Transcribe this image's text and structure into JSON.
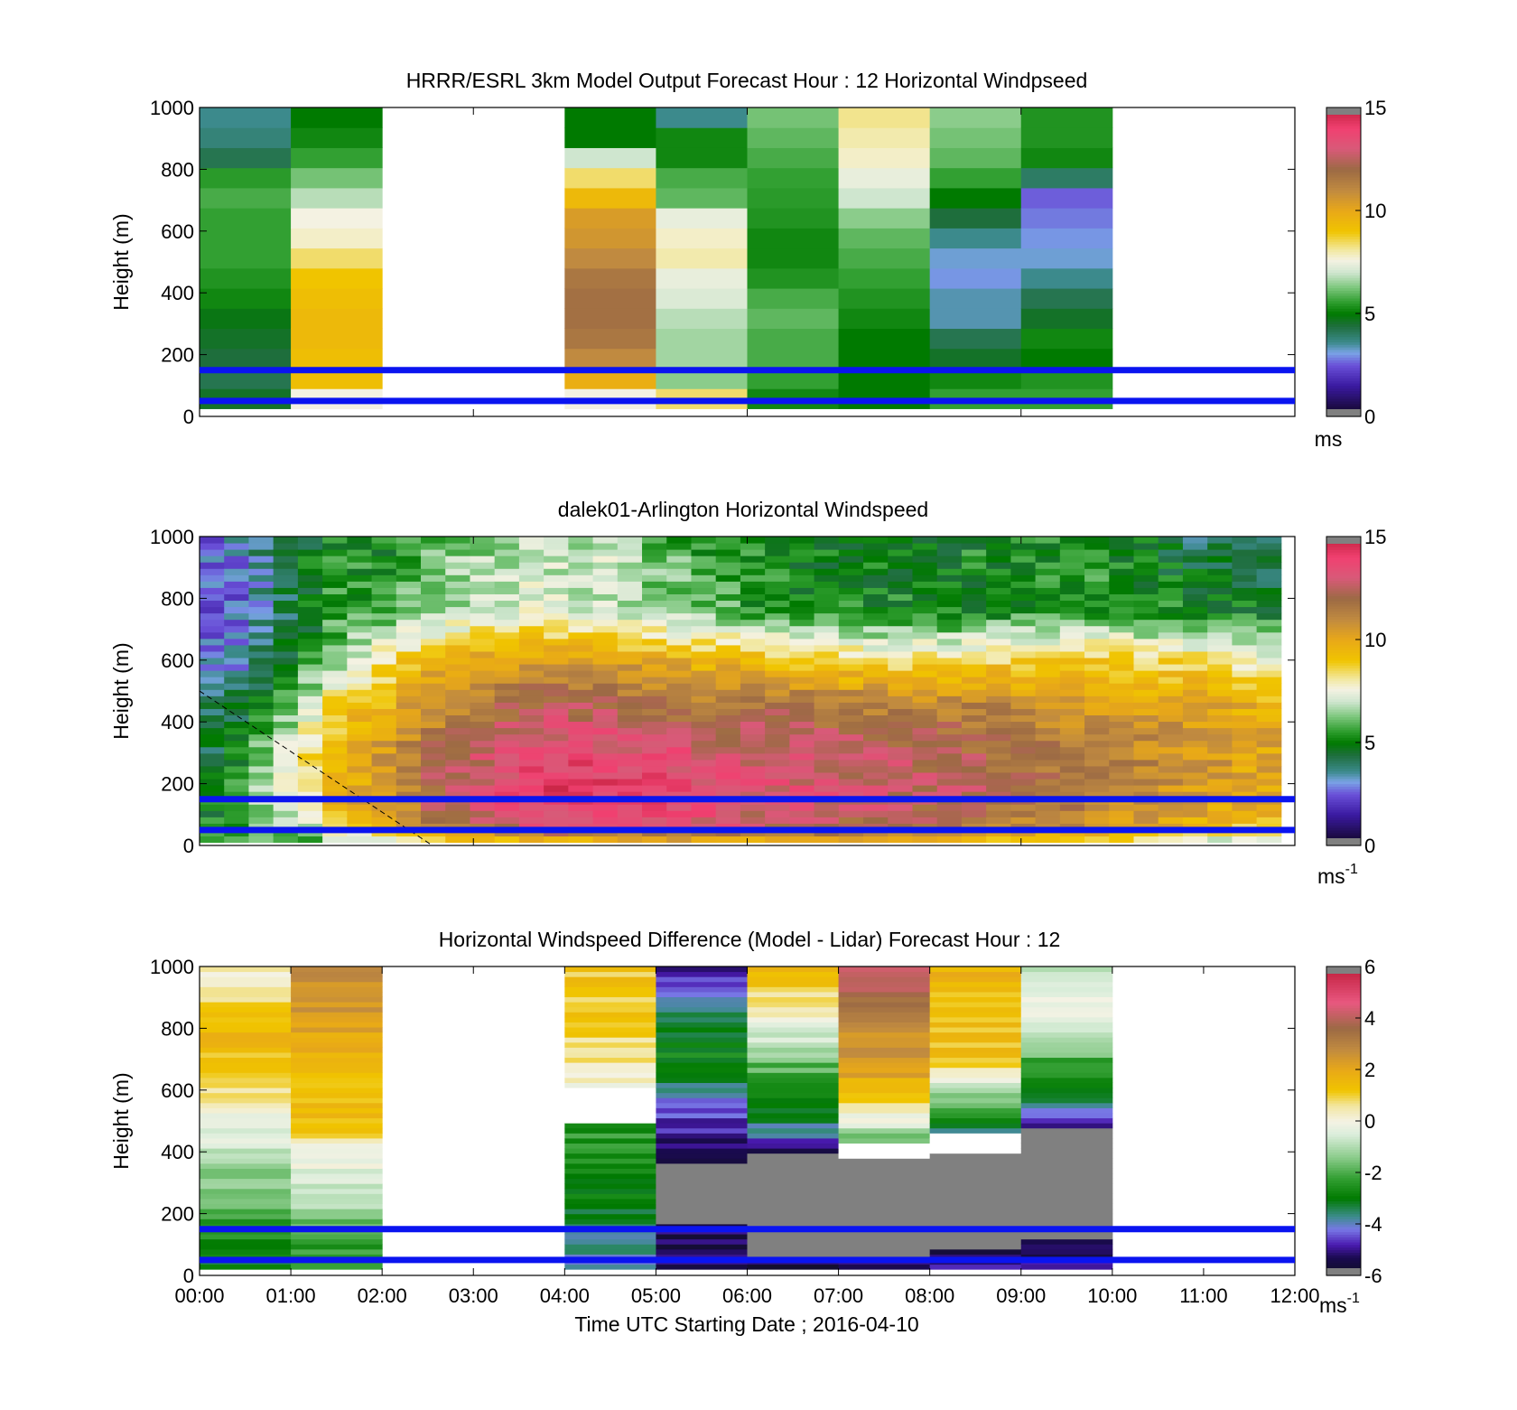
{
  "figure": {
    "xlabel": "Time UTC  Starting Date ; 2016-04-10",
    "xticks": [
      "00:00",
      "01:00",
      "02:00",
      "03:00",
      "04:00",
      "05:00",
      "06:00",
      "07:00",
      "08:00",
      "09:00",
      "10:00",
      "11:00",
      "12:00"
    ],
    "blue_lines_height_m": [
      150,
      50
    ]
  },
  "chart_data": [
    {
      "type": "heatmap",
      "title": "HRRR/ESRL 3km Model Output   Forecast Hour : 12 Horizontal Windpseed",
      "ylabel": "Height (m)",
      "ylim": [
        0,
        1000
      ],
      "yticks": [
        "0",
        "200",
        "400",
        "600",
        "800",
        "1000"
      ],
      "xlim_hours": [
        0,
        12
      ],
      "colorbar": {
        "min": 0,
        "max": 15,
        "ticks": [
          "0",
          "5",
          "10",
          "15"
        ],
        "unit": "ms"
      },
      "columns": [
        {
          "start_hour": 0,
          "speeds": [
            4.6,
            4.2,
            4.4,
            4.6,
            4.8,
            5.2,
            5.4,
            5.6,
            5.6,
            5.6,
            5.8,
            5.5,
            4.2,
            3.8,
            3.6
          ]
        },
        {
          "start_hour": 1,
          "speeds": [
            7.6,
            9.2,
            9.2,
            9.4,
            9.4,
            9.2,
            9.0,
            8.4,
            7.8,
            7.6,
            6.8,
            6.2,
            5.6,
            5.2,
            5.0
          ]
        },
        {
          "start_hour": 4,
          "speeds": [
            7.6,
            9.8,
            11.0,
            11.6,
            11.8,
            11.8,
            11.6,
            11.0,
            10.6,
            10.4,
            9.4,
            8.4,
            7.0,
            5.0,
            5.0
          ]
        },
        {
          "start_hour": 5,
          "speeds": [
            8.4,
            6.4,
            6.6,
            6.6,
            6.8,
            7.2,
            7.4,
            8.0,
            7.8,
            7.4,
            6.0,
            5.8,
            5.2,
            5.2,
            3.6
          ]
        },
        {
          "start_hour": 6,
          "speeds": [
            5.2,
            5.6,
            5.8,
            5.8,
            6.0,
            5.8,
            5.4,
            5.2,
            5.2,
            5.4,
            5.5,
            5.6,
            5.8,
            6.0,
            6.2
          ]
        },
        {
          "start_hour": 7,
          "speeds": [
            5.0,
            5.0,
            5.0,
            5.0,
            5.2,
            5.4,
            5.6,
            5.8,
            6.0,
            6.4,
            7.0,
            7.4,
            7.8,
            8.0,
            8.2
          ]
        },
        {
          "start_hour": 8,
          "speeds": [
            5.6,
            5.2,
            4.6,
            4.2,
            3.4,
            3.4,
            3.0,
            3.2,
            3.6,
            4.4,
            5.0,
            5.6,
            6.0,
            6.2,
            6.4
          ]
        },
        {
          "start_hour": 9,
          "speeds": [
            5.6,
            5.4,
            5.0,
            5.2,
            4.6,
            4.2,
            3.6,
            3.2,
            3.0,
            2.8,
            2.6,
            4.0,
            5.2,
            5.4,
            5.4
          ]
        }
      ]
    },
    {
      "type": "heatmap",
      "title": "dalek01-Arlington  Horizontal Windspeed",
      "ylabel": "Height (m)",
      "ylim": [
        0,
        1000
      ],
      "yticks": [
        "0",
        "200",
        "400",
        "600",
        "800",
        "1000"
      ],
      "xlim_hours": [
        0,
        12
      ],
      "x_end_hour": 11.85,
      "colorbar": {
        "min": 0,
        "max": 15,
        "ticks": [
          "0",
          "5",
          "10",
          "15"
        ],
        "unit": "ms",
        "unit_exponent": "-1"
      },
      "columns_count": 44,
      "profile_points_height_m": [
        0,
        60,
        150,
        300,
        450,
        600,
        750,
        1000
      ],
      "profiles": [
        {
          "hour": 0.0,
          "speeds": [
            4.8,
            5.0,
            4.5,
            4.2,
            3.8,
            2.6,
            2.2,
            2.6
          ]
        },
        {
          "hour": 0.5,
          "speeds": [
            5.4,
            6.0,
            6.2,
            5.2,
            4.4,
            3.2,
            2.8,
            3.2
          ]
        },
        {
          "hour": 1.0,
          "speeds": [
            5.4,
            6.4,
            7.4,
            7.6,
            6.4,
            4.8,
            4.2,
            4.4
          ]
        },
        {
          "hour": 1.5,
          "speeds": [
            6.0,
            8.0,
            9.6,
            9.6,
            8.8,
            6.4,
            5.6,
            5.2
          ]
        },
        {
          "hour": 2.0,
          "speeds": [
            7.0,
            9.6,
            10.6,
            10.4,
            9.6,
            8.2,
            5.8,
            5.0
          ]
        },
        {
          "hour": 2.5,
          "speeds": [
            7.6,
            11.2,
            12.2,
            12.0,
            10.6,
            9.4,
            6.4,
            6.0
          ]
        },
        {
          "hour": 3.0,
          "speeds": [
            7.8,
            12.0,
            13.0,
            12.6,
            11.4,
            10.0,
            7.0,
            6.4
          ]
        },
        {
          "hour": 3.5,
          "speeds": [
            8.0,
            12.8,
            13.8,
            13.4,
            12.2,
            10.4,
            7.6,
            6.6
          ]
        },
        {
          "hour": 4.0,
          "speeds": [
            8.2,
            13.4,
            14.2,
            13.8,
            12.4,
            10.6,
            7.4,
            6.6
          ]
        },
        {
          "hour": 4.5,
          "speeds": [
            8.0,
            13.4,
            14.0,
            13.6,
            12.4,
            10.4,
            7.2,
            6.8
          ]
        },
        {
          "hour": 5.0,
          "speeds": [
            8.4,
            13.2,
            14.0,
            13.4,
            11.8,
            9.8,
            6.6,
            6.0
          ]
        },
        {
          "hour": 5.5,
          "speeds": [
            8.4,
            13.0,
            13.6,
            13.2,
            11.6,
            9.6,
            6.4,
            5.4
          ]
        },
        {
          "hour": 6.0,
          "speeds": [
            8.6,
            12.8,
            13.2,
            13.0,
            11.8,
            9.4,
            5.6,
            5.2
          ]
        },
        {
          "hour": 6.5,
          "speeds": [
            8.6,
            12.4,
            13.2,
            13.0,
            11.8,
            9.0,
            5.4,
            4.8
          ]
        },
        {
          "hour": 7.0,
          "speeds": [
            8.8,
            12.2,
            13.0,
            12.8,
            11.6,
            8.6,
            5.2,
            5.0
          ]
        },
        {
          "hour": 7.5,
          "speeds": [
            8.8,
            12.0,
            12.8,
            12.6,
            11.4,
            8.4,
            5.2,
            5.0
          ]
        },
        {
          "hour": 8.0,
          "speeds": [
            8.6,
            11.8,
            12.6,
            12.4,
            11.4,
            8.4,
            5.0,
            5.0
          ]
        },
        {
          "hour": 8.5,
          "speeds": [
            8.4,
            11.6,
            12.4,
            12.2,
            11.2,
            8.6,
            5.2,
            5.2
          ]
        },
        {
          "hour": 9.0,
          "speeds": [
            8.2,
            11.2,
            12.0,
            11.8,
            11.0,
            8.8,
            5.4,
            5.2
          ]
        },
        {
          "hour": 9.5,
          "speeds": [
            8.0,
            10.8,
            11.6,
            11.6,
            10.8,
            8.8,
            5.6,
            5.2
          ]
        },
        {
          "hour": 10.0,
          "speeds": [
            7.6,
            10.4,
            11.2,
            11.2,
            10.4,
            8.8,
            5.6,
            5.0
          ]
        },
        {
          "hour": 10.5,
          "speeds": [
            7.0,
            10.0,
            10.8,
            11.0,
            10.4,
            8.6,
            5.4,
            4.6
          ]
        },
        {
          "hour": 11.0,
          "speeds": [
            6.4,
            9.4,
            10.4,
            10.6,
            10.2,
            8.4,
            5.2,
            4.0
          ]
        },
        {
          "hour": 11.5,
          "speeds": [
            5.8,
            9.0,
            10.0,
            10.2,
            9.8,
            8.0,
            5.0,
            3.8
          ]
        }
      ],
      "dashed_line": {
        "from": {
          "hour": 0.0,
          "height_m": 500
        },
        "to": {
          "hour": 2.55,
          "height_m": 0
        }
      }
    },
    {
      "type": "heatmap",
      "title": "Horizontal Windspeed Difference (Model - Lidar) Forecast Hour : 12",
      "ylabel": "Height (m)",
      "ylim": [
        0,
        1000
      ],
      "yticks": [
        "0",
        "200",
        "400",
        "600",
        "800",
        "1000"
      ],
      "xlim_hours": [
        0,
        12
      ],
      "colorbar": {
        "min": -6,
        "max": 6,
        "ticks": [
          "-6",
          "-4",
          "-2",
          "0",
          "2",
          "4",
          "6"
        ],
        "unit": "ms",
        "unit_exponent": "-1"
      },
      "columns": [
        {
          "start_hour": 0,
          "profile_points_height_m": [
            20,
            100,
            250,
            400,
            500,
            650,
            800,
            1000
          ],
          "diffs": [
            -3.2,
            -2.6,
            -1.8,
            -0.8,
            -0.2,
            1.2,
            1.6,
            0.2
          ],
          "gray_top_m": null,
          "white_gap_m": null
        },
        {
          "start_hour": 1,
          "profile_points_height_m": [
            20,
            100,
            250,
            400,
            500,
            650,
            800,
            1000
          ],
          "diffs": [
            -2.4,
            -2.2,
            -1.0,
            0.0,
            1.4,
            1.6,
            2.2,
            2.6
          ],
          "gray_top_m": null,
          "white_gap_m": null
        },
        {
          "start_hour": 4,
          "profile_points_height_m": [
            20,
            100,
            250,
            400,
            500,
            600,
            800,
            1000
          ],
          "diffs": [
            -3.6,
            -3.8,
            -2.8,
            -2.4,
            -2.4,
            0.0,
            1.0,
            1.2
          ],
          "gray_top_m": null,
          "white_gap_m": [
            500,
            600
          ]
        },
        {
          "start_hour": 5,
          "profile_points_height_m": [
            20,
            160,
            360,
            450,
            550,
            700,
            850,
            1000
          ],
          "diffs": [
            -5.2,
            -5.4,
            -5.4,
            -5.0,
            -4.2,
            -2.8,
            -3.2,
            -5.4
          ],
          "gray_top_m": 360,
          "gray_bottom_m": 160,
          "white_gap_m": null
        },
        {
          "start_hour": 6,
          "profile_points_height_m": [
            20,
            160,
            400,
            500,
            600,
            700,
            850,
            1000
          ],
          "diffs": [
            -5.4,
            -5.6,
            -5.2,
            -3.4,
            -2.6,
            -1.6,
            0.4,
            1.4
          ],
          "gray_top_m": 400,
          "gray_bottom_m": 60,
          "white_gap_m": null
        },
        {
          "start_hour": 7,
          "profile_points_height_m": [
            20,
            160,
            420,
            500,
            600,
            700,
            850,
            1000
          ],
          "diffs": [
            -5.4,
            -5.6,
            -2.2,
            -0.4,
            1.6,
            2.4,
            2.8,
            4.6
          ],
          "gray_top_m": 380,
          "gray_bottom_m": 50,
          "white_gap_m": [
            380,
            430
          ]
        },
        {
          "start_hour": 8,
          "profile_points_height_m": [
            20,
            160,
            430,
            500,
            600,
            700,
            850,
            1000
          ],
          "diffs": [
            -5.0,
            -5.6,
            -4.4,
            -3.0,
            -0.8,
            1.2,
            1.4,
            1.6
          ],
          "gray_top_m": 400,
          "gray_bottom_m": 80,
          "white_gap_m": [
            400,
            460
          ]
        },
        {
          "start_hour": 9,
          "profile_points_height_m": [
            20,
            160,
            480,
            560,
            650,
            750,
            850,
            1000
          ],
          "diffs": [
            -5.2,
            -5.4,
            -5.2,
            -3.6,
            -2.6,
            -1.4,
            -0.2,
            -1.0
          ],
          "gray_top_m": 480,
          "gray_bottom_m": 110,
          "white_gap_m": null
        }
      ]
    }
  ]
}
